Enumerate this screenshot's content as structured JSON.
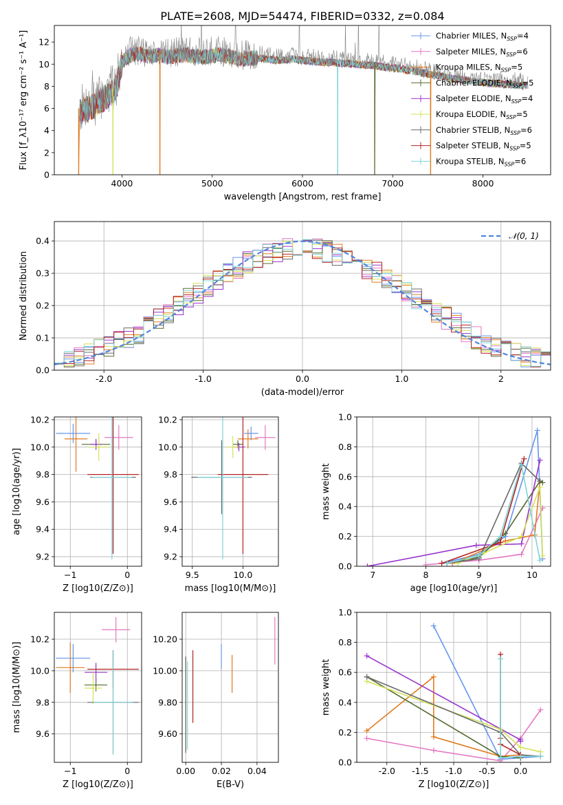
{
  "figure": {
    "title": "PLATE=2608, MJD=54474, FIBERID=0332, z=0.084"
  },
  "model_labels": [
    "Chabrier MILES, N_SSP=4",
    "Salpeter MILES, N_SSP=6",
    "Kroupa MILES, N_SSP=5",
    "Chabrier ELODIE, N_SSP=5",
    "Salpeter ELODIE, N_SSP=4",
    "Kroupa ELODIE, N_SSP=5",
    "Chabrier STELIB, N_SSP=6",
    "Salpeter STELIB, N_SSP=5",
    "Kroupa STELIB, N_SSP=6"
  ],
  "model_colors": [
    "#6495ed",
    "#e377c2",
    "#e07b20",
    "#556b2f",
    "#9932cc",
    "#d4e157",
    "#696969",
    "#b22222",
    "#7fd3d6"
  ],
  "chart_data": [
    {
      "id": "spectrum",
      "type": "line",
      "xlabel": "wavelength [Angstrom, rest frame]",
      "ylabel": "Flux [f_λ10⁻¹⁷ erg cm⁻² s⁻¹ A⁻¹]",
      "xlim": [
        3250,
        8750
      ],
      "ylim": [
        0,
        13.5
      ],
      "xticks": [
        4000,
        5000,
        6000,
        7000,
        8000
      ],
      "yticks": [
        0,
        2,
        4,
        6,
        8,
        10,
        12
      ],
      "grid": false,
      "legend": "top-right",
      "continuum": {
        "x": [
          3530,
          3600,
          3700,
          3800,
          3900,
          3950,
          4000,
          4100,
          4200,
          4300,
          4400,
          4500,
          4700,
          4900,
          5100,
          5300,
          5500,
          5700,
          5900,
          6100,
          6300,
          6500,
          6700,
          6900,
          7100,
          7300,
          7500,
          7700,
          7900,
          8100,
          8300,
          8500
        ],
        "y": [
          6.0,
          6.3,
          6.6,
          7.2,
          7.8,
          8.6,
          10.6,
          11.2,
          11.3,
          11.0,
          11.2,
          11.0,
          11.2,
          11.0,
          11.2,
          10.8,
          10.9,
          10.7,
          10.8,
          10.6,
          10.5,
          10.4,
          10.3,
          10.1,
          9.9,
          9.6,
          9.3,
          9.0,
          8.8,
          8.6,
          8.5,
          8.4
        ]
      },
      "dropouts": [
        {
          "x": 3520,
          "series": 2
        },
        {
          "x": 3900,
          "series": 5
        },
        {
          "x": 4420,
          "series": 2
        },
        {
          "x": 6390,
          "series": 8
        },
        {
          "x": 6800,
          "series": 3
        },
        {
          "x": 7420,
          "series": 2
        }
      ]
    },
    {
      "id": "residuals",
      "type": "histogram",
      "xlabel": "(data-model)/error",
      "ylabel": "Normed distribution",
      "xlim": [
        -2.5,
        2.5
      ],
      "ylim": [
        0,
        0.46
      ],
      "xticks": [
        -2,
        -1,
        0,
        1,
        2
      ],
      "yticks": [
        0.0,
        0.1,
        0.2,
        0.3,
        0.4
      ],
      "grid": true,
      "legend": "top-right",
      "gaussian_label": "𝒩(0, 1)",
      "bin_width": 0.1
    },
    {
      "id": "age-vs-Z",
      "type": "scatter",
      "xlabel": "Z [log10(Z/Z⊙)]",
      "ylabel": "age [log10(age/yr)]",
      "xlim": [
        -1.28,
        0.25
      ],
      "ylim": [
        9.13,
        10.22
      ],
      "xticks": [
        -1,
        0
      ],
      "yticks": [
        9.2,
        9.4,
        9.6,
        9.8,
        10.0,
        10.2
      ],
      "grid": true,
      "points": [
        {
          "x": -0.95,
          "y": 10.1,
          "xerr": 0.3,
          "yerr": 0.07
        },
        {
          "x": -0.15,
          "y": 10.07,
          "xerr": 0.25,
          "yerr": 0.09
        },
        {
          "x": -0.9,
          "y": 10.06,
          "xerr": 0.2,
          "yerr": 0.24
        },
        {
          "x": -0.55,
          "y": 10.02,
          "xerr": 0.25,
          "yerr": 0.03
        },
        {
          "x": -0.55,
          "y": 10.02,
          "xerr": 0.1,
          "yerr": 0.04
        },
        {
          "x": -0.5,
          "y": 10.0,
          "xerr": 0.18,
          "yerr": 0.1
        },
        {
          "x": -0.25,
          "y": 9.78,
          "xerr": 0.4,
          "yerr": 0.55
        },
        {
          "x": -0.25,
          "y": 9.8,
          "xerr": 0.45,
          "yerr": 0.58
        },
        {
          "x": -0.27,
          "y": 9.78,
          "xerr": 0.35,
          "yerr": 0.6
        }
      ]
    },
    {
      "id": "age-vs-mass",
      "type": "scatter",
      "xlabel": "mass [log10(M/M⊙)]",
      "ylabel": "",
      "xlim": [
        9.4,
        10.35
      ],
      "ylim": [
        9.13,
        10.22
      ],
      "xticks": [
        9.5,
        10.0
      ],
      "yticks": [
        9.2,
        9.4,
        9.6,
        9.8,
        10.0,
        10.2
      ],
      "grid": true,
      "points": [
        {
          "x": 10.08,
          "y": 10.1,
          "xerr": 0.07,
          "yerr": 0.05
        },
        {
          "x": 10.22,
          "y": 10.07,
          "xerr": 0.1,
          "yerr": 0.09
        },
        {
          "x": 10.05,
          "y": 10.06,
          "xerr": 0.1,
          "yerr": 0.07
        },
        {
          "x": 9.95,
          "y": 10.02,
          "xerr": 0.05,
          "yerr": 0.03
        },
        {
          "x": 9.96,
          "y": 10.0,
          "xerr": 0.06,
          "yerr": 0.03
        },
        {
          "x": 9.9,
          "y": 10.0,
          "xerr": 0.06,
          "yerr": 0.08
        },
        {
          "x": 9.79,
          "y": 9.78,
          "xerr": 0.3,
          "yerr": 0.27
        },
        {
          "x": 10.0,
          "y": 9.8,
          "xerr": 0.25,
          "yerr": 0.58
        },
        {
          "x": 9.8,
          "y": 9.78,
          "xerr": 0.25,
          "yerr": 0.6
        }
      ]
    },
    {
      "id": "mass-weight-vs-age",
      "type": "line",
      "xlabel": "age [log10(age/yr)]",
      "ylabel": "mass weight",
      "xlim": [
        6.7,
        10.35
      ],
      "ylim": [
        0,
        1.0
      ],
      "xticks": [
        7,
        8,
        9,
        10
      ],
      "yticks": [
        0.0,
        0.2,
        0.4,
        0.6,
        0.8,
        1.0
      ],
      "grid": true,
      "series": [
        {
          "x": [
            8.3,
            9.0,
            9.5,
            10.1,
            10.2
          ],
          "y": [
            0.02,
            0.08,
            0.2,
            0.91,
            0.05
          ]
        },
        {
          "x": [
            8.0,
            9.0,
            9.8,
            10.2
          ],
          "y": [
            0.01,
            0.04,
            0.08,
            0.39
          ]
        },
        {
          "x": [
            8.5,
            9.5,
            10.05,
            10.15
          ],
          "y": [
            0.02,
            0.17,
            0.21,
            0.57
          ]
        },
        {
          "x": [
            8.4,
            9.0,
            9.5,
            10.15,
            10.2
          ],
          "y": [
            0.02,
            0.06,
            0.22,
            0.57,
            0.56
          ]
        },
        {
          "x": [
            6.9,
            8.95,
            9.8,
            10.15
          ],
          "y": [
            0.0,
            0.14,
            0.15,
            0.71
          ]
        },
        {
          "x": [
            8.6,
            9.1,
            9.8,
            10.15,
            10.2
          ],
          "y": [
            0.02,
            0.09,
            0.2,
            0.53,
            0.07
          ]
        },
        {
          "x": [
            8.4,
            9.0,
            9.8,
            10.15
          ],
          "y": [
            0.02,
            0.05,
            0.69,
            0.57
          ]
        },
        {
          "x": [
            8.3,
            9.4,
            9.85
          ],
          "y": [
            0.02,
            0.16,
            0.72
          ]
        },
        {
          "x": [
            8.4,
            9.0,
            9.4,
            9.8,
            10.15
          ],
          "y": [
            0.02,
            0.07,
            0.2,
            0.68,
            0.04
          ]
        }
      ]
    },
    {
      "id": "mass-vs-Z",
      "type": "scatter",
      "xlabel": "Z [log10(Z/Z⊙)]",
      "ylabel": "mass [log10(M/M⊙)]",
      "xlim": [
        -1.28,
        0.25
      ],
      "ylim": [
        9.42,
        10.37
      ],
      "xticks": [
        -1,
        0
      ],
      "yticks": [
        9.6,
        9.8,
        10.0,
        10.2
      ],
      "grid": true,
      "points": [
        {
          "x": -0.95,
          "y": 10.08,
          "xerr": 0.3,
          "yerr": 0.09
        },
        {
          "x": -0.2,
          "y": 10.26,
          "xerr": 0.25,
          "yerr": 0.08
        },
        {
          "x": -1.0,
          "y": 10.02,
          "xerr": 0.25,
          "yerr": 0.16
        },
        {
          "x": -0.55,
          "y": 9.91,
          "xerr": 0.2,
          "yerr": 0.04
        },
        {
          "x": -0.55,
          "y": 9.99,
          "xerr": 0.2,
          "yerr": 0.06
        },
        {
          "x": -0.6,
          "y": 9.89,
          "xerr": 0.15,
          "yerr": 0.1
        },
        {
          "x": -0.25,
          "y": 9.8,
          "xerr": 0.45,
          "yerr": 0.33
        },
        {
          "x": -0.25,
          "y": 10.01,
          "xerr": 0.45,
          "yerr": 0.12
        },
        {
          "x": -0.25,
          "y": 9.8,
          "xerr": 0.35,
          "yerr": 0.33
        }
      ]
    },
    {
      "id": "mass-vs-ebv",
      "type": "scatter",
      "xlabel": "E(B-V)",
      "ylabel": "",
      "xlim": [
        -0.002,
        0.052
      ],
      "ylim": [
        9.42,
        10.37
      ],
      "xticks": [
        0.0,
        0.02,
        0.04
      ],
      "yticks": [
        9.6,
        9.8,
        10.0,
        10.2
      ],
      "grid": true,
      "points": [
        {
          "x": 0.02,
          "y": 10.09,
          "yerr": 0.08
        },
        {
          "x": 0.05,
          "y": 10.19,
          "yerr": 0.15
        },
        {
          "x": 0.026,
          "y": 9.98,
          "yerr": 0.12
        },
        {
          "x": 0.0,
          "y": 9.79,
          "yerr": 0.3
        },
        {
          "x": 0.0,
          "y": 9.78,
          "yerr": 0.28
        },
        {
          "x": 0.0,
          "y": 9.78,
          "yerr": 0.29
        },
        {
          "x": 0.0,
          "y": 9.78,
          "yerr": 0.3
        },
        {
          "x": 0.004,
          "y": 9.9,
          "yerr": 0.23
        },
        {
          "x": 0.001,
          "y": 9.78,
          "yerr": 0.28
        }
      ]
    },
    {
      "id": "mass-weight-vs-Z",
      "type": "line",
      "xlabel": "Z [log10(Z/Z⊙)]",
      "ylabel": "mass weight",
      "xlim": [
        -2.45,
        0.45
      ],
      "ylim": [
        0,
        1.0
      ],
      "xticks": [
        -2.0,
        -1.5,
        -1.0,
        -0.5,
        0.0
      ],
      "yticks": [
        0.0,
        0.2,
        0.4,
        0.6,
        0.8,
        1.0
      ],
      "grid": true,
      "series": [
        {
          "x": [
            -1.3,
            -0.3,
            0.0,
            0.3
          ],
          "y": [
            0.91,
            0.02,
            0.03,
            0.04
          ]
        },
        {
          "x": [
            -2.3,
            -1.3,
            -0.3,
            0.0,
            0.3
          ],
          "y": [
            0.16,
            0.08,
            0.01,
            0.16,
            0.35
          ]
        },
        {
          "x": [
            -2.3,
            -1.3,
            -1.3,
            -0.3,
            0.0
          ],
          "y": [
            0.21,
            0.57,
            0.17,
            0.04,
            0.05
          ]
        },
        {
          "x": [
            -2.3,
            -0.3,
            0.0
          ],
          "y": [
            0.57,
            0.04,
            0.03
          ]
        },
        {
          "x": [
            -2.3,
            0.0,
            0.0
          ],
          "y": [
            0.71,
            0.15,
            0.14
          ]
        },
        {
          "x": [
            -2.3,
            -0.3,
            0.0,
            0.3
          ],
          "y": [
            0.54,
            0.22,
            0.1,
            0.07
          ]
        },
        {
          "x": [
            -2.3,
            -0.3,
            0.0,
            0.3
          ],
          "y": [
            0.57,
            0.2,
            0.05,
            0.04
          ]
        },
        {
          "x": [
            -0.3,
            -0.3,
            -0.3,
            0.0
          ],
          "y": [
            0.72,
            0.16,
            0.12,
            0.05
          ]
        },
        {
          "x": [
            -0.3,
            -0.3,
            0.0,
            0.3
          ],
          "y": [
            0.69,
            0.03,
            0.04,
            0.04
          ]
        }
      ]
    }
  ]
}
